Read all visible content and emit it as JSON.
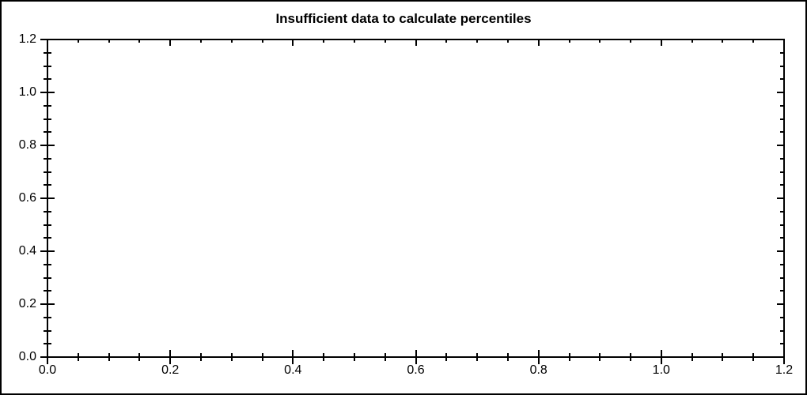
{
  "page": {
    "background": "#ffffff",
    "border_color": "#000000",
    "text_color": "#000000"
  },
  "chart_data": {
    "type": "scatter",
    "title": "Insufficient data to calculate percentiles",
    "series": [],
    "x_axis": {
      "min": 0.0,
      "max": 1.2,
      "major_tick_values": [
        0,
        0.2,
        0.4,
        0.6,
        0.8,
        1.0,
        1.2
      ],
      "major_tick_labels": [
        "0.0",
        "0.2",
        "0.4",
        "0.6",
        "0.8",
        "1.0",
        "1.2"
      ],
      "minor_tick_step": 0.05
    },
    "y_axis": {
      "min": 0.0,
      "max": 1.2,
      "major_tick_values": [
        0,
        0.2,
        0.4,
        0.6,
        0.8,
        1.0,
        1.2
      ],
      "major_tick_labels": [
        "0.0",
        "0.2",
        "0.4",
        "0.6",
        "0.8",
        "1.0",
        "1.2"
      ],
      "minor_tick_step": 0.05
    },
    "grid": false,
    "legend": false
  }
}
